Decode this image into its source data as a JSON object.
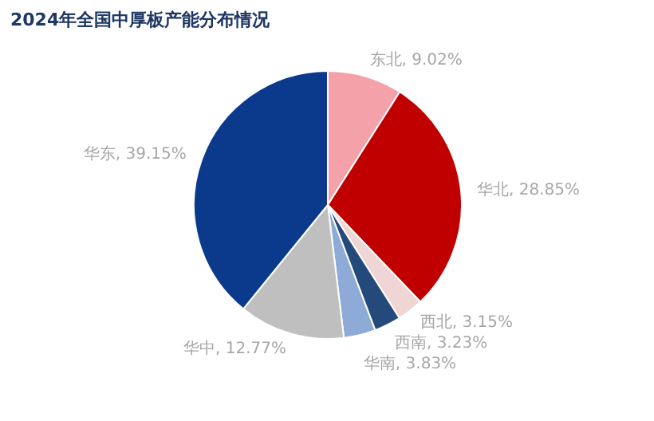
{
  "chart_data": {
    "type": "pie",
    "title": "2024年全国中厚板产能分布情况",
    "categories": [
      "东北",
      "华北",
      "西北",
      "西南",
      "华南",
      "华中",
      "华东"
    ],
    "values": [
      9.02,
      28.85,
      3.15,
      3.23,
      3.83,
      12.77,
      39.15
    ],
    "value_labels": [
      "9.02%",
      "28.85%",
      "3.15%",
      "3.23%",
      "3.83%",
      "12.77%",
      "39.15%"
    ],
    "colors": [
      "#f4a1aa",
      "#c00000",
      "#f0d5d5",
      "#244a7c",
      "#8eaad6",
      "#bfbfbf",
      "#0b3a8c"
    ]
  }
}
